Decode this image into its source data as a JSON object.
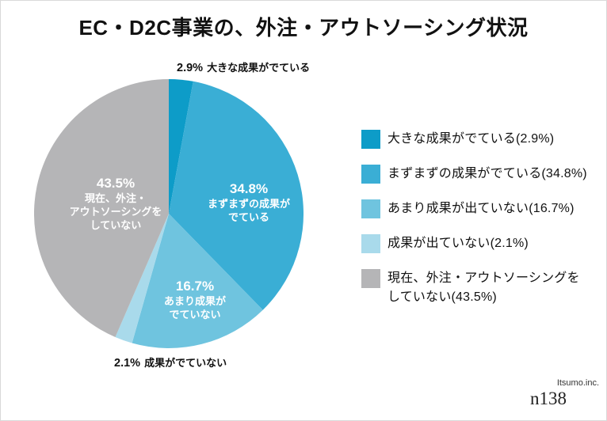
{
  "header": {
    "title": "EC・D2C事業の、外注・アウトソーシング状況"
  },
  "callouts": {
    "top": {
      "pct": "2.9%",
      "text": "大きな成果がでている"
    },
    "bottom": {
      "pct": "2.1%",
      "text": "成果がでていない"
    }
  },
  "slice_labels": {
    "good": {
      "pct": "34.8%",
      "text": "まずまずの成果が\nでている"
    },
    "poor": {
      "pct": "16.7%",
      "text": "あまり成果が\nでていない"
    },
    "none": {
      "pct": "43.5%",
      "text": "現在、外注・\nアウトソーシングを\nしていない"
    }
  },
  "legend": {
    "items": [
      {
        "label": "大きな成果がでている(2.9%)",
        "color": "#0d9cc8"
      },
      {
        "label": "まずまずの成果がでている(34.8%)",
        "color": "#3aaed5"
      },
      {
        "label": "あまり成果が出ていない(16.7%)",
        "color": "#6fc4df"
      },
      {
        "label": "成果が出ていない(2.1%)",
        "color": "#a9daeb"
      },
      {
        "label": "現在、外注・アウトソーシングを\nしていない(43.5%)",
        "color": "#b5b5b7"
      }
    ]
  },
  "footer": {
    "source": "Itsumo.inc.",
    "sample_size": "n138"
  },
  "chart_data": {
    "type": "pie",
    "title": "EC・D2C事業の、外注・アウトソーシング状況",
    "categories": [
      "大きな成果がでている",
      "まずまずの成果がでている",
      "あまり成果が出ていない",
      "成果が出ていない",
      "現在、外注・アウトソーシングをしていない"
    ],
    "values": [
      2.9,
      34.8,
      16.7,
      2.1,
      43.5
    ],
    "colors": [
      "#0d9cc8",
      "#3aaed5",
      "#6fc4df",
      "#a9daeb",
      "#b5b5b7"
    ],
    "unit": "%",
    "start_angle_deg": 0,
    "direction": "clockwise",
    "legend_position": "right",
    "sample_label": "n138"
  }
}
